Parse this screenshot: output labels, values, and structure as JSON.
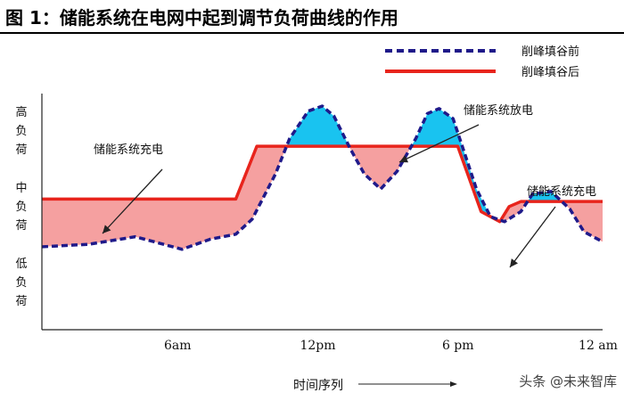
{
  "title": "图 1：储能系统在电网中起到调节负荷曲线的作用",
  "watermark": "头条 @未来智库",
  "chart_data": {
    "type": "area",
    "title": "",
    "xlabel": "时间序列",
    "x_ticks": [
      "6am",
      "12pm",
      "6 pm",
      "12 am"
    ],
    "y_ticks": [
      "高负荷",
      "中负荷",
      "低负荷"
    ],
    "legend": [
      {
        "name": "削峰填谷前",
        "style": "dashed",
        "color": "#1f1a8a"
      },
      {
        "name": "削峰填谷后",
        "style": "solid",
        "color": "#e8241c"
      }
    ],
    "legend_position": "top-right",
    "annotations": [
      "储能系统充电",
      "储能系统放电",
      "储能系统充电"
    ],
    "colors": {
      "discharge_fill": "#19c3f0",
      "charge_fill": "#f5a0a0",
      "before": "#1f1a8a",
      "after": "#e8241c"
    },
    "x_range": [
      0,
      24
    ],
    "y_range": [
      0,
      10
    ],
    "series": [
      {
        "name": "削峰填谷前",
        "x": [
          0,
          2,
          4,
          6,
          7.2,
          8.3,
          9,
          10,
          10.6,
          11.4,
          12,
          12.5,
          13.2,
          13.8,
          14.5,
          15.2,
          16,
          16.5,
          17,
          17.6,
          18.1,
          18.6,
          19.2,
          19.8,
          20.5,
          21,
          21.8,
          22.6,
          23.2,
          24
        ],
        "y": [
          3.3,
          3.4,
          3.7,
          3.2,
          3.6,
          3.8,
          4.4,
          6.2,
          7.6,
          8.7,
          8.9,
          8.5,
          7.2,
          6.2,
          5.6,
          6.3,
          7.6,
          8.6,
          8.8,
          8.4,
          7.0,
          5.6,
          4.5,
          4.3,
          4.7,
          5.4,
          5.5,
          4.8,
          3.9,
          3.5
        ]
      },
      {
        "name": "削峰填谷后",
        "x": [
          0,
          7.2,
          8.3,
          9.2,
          17.8,
          18.8,
          19.6,
          20,
          20.5,
          24
        ],
        "y": [
          5.2,
          5.2,
          5.2,
          7.3,
          7.3,
          4.7,
          4.3,
          4.9,
          5.1,
          5.1
        ]
      }
    ]
  }
}
